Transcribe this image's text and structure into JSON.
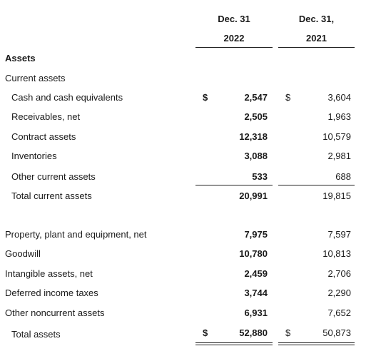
{
  "header": {
    "col2022_line1": "Dec. 31",
    "col2022_line2": "2022",
    "col2021_line1": "Dec. 31,",
    "col2021_line2": "2021"
  },
  "sections": {
    "assets": "Assets",
    "current_assets": "Current assets"
  },
  "rows": [
    {
      "label": "Cash and cash equivalents",
      "dollar_2022": "$",
      "v2022": "2,547",
      "dollar_2021": "$",
      "v2021": "3,604"
    },
    {
      "label": "Receivables, net",
      "v2022": "2,505",
      "v2021": "1,963"
    },
    {
      "label": "Contract assets",
      "v2022": "12,318",
      "v2021": "10,579"
    },
    {
      "label": "Inventories",
      "v2022": "3,088",
      "v2021": "2,981"
    },
    {
      "label": "Other current assets",
      "v2022": "533",
      "v2021": "688"
    },
    {
      "label": "Total current assets",
      "v2022": "20,991",
      "v2021": "19,815"
    },
    {
      "label": "Property, plant and equipment, net",
      "v2022": "7,975",
      "v2021": "7,597"
    },
    {
      "label": "Goodwill",
      "v2022": "10,780",
      "v2021": "10,813"
    },
    {
      "label": "Intangible assets, net",
      "v2022": "2,459",
      "v2021": "2,706"
    },
    {
      "label": "Deferred income taxes",
      "v2022": "3,744",
      "v2021": "2,290"
    },
    {
      "label": "Other noncurrent assets",
      "v2022": "6,931",
      "v2021": "7,652"
    },
    {
      "label": "Total assets",
      "dollar_2022": "$",
      "v2022": "52,880",
      "dollar_2021": "$",
      "v2021": "50,873"
    }
  ]
}
